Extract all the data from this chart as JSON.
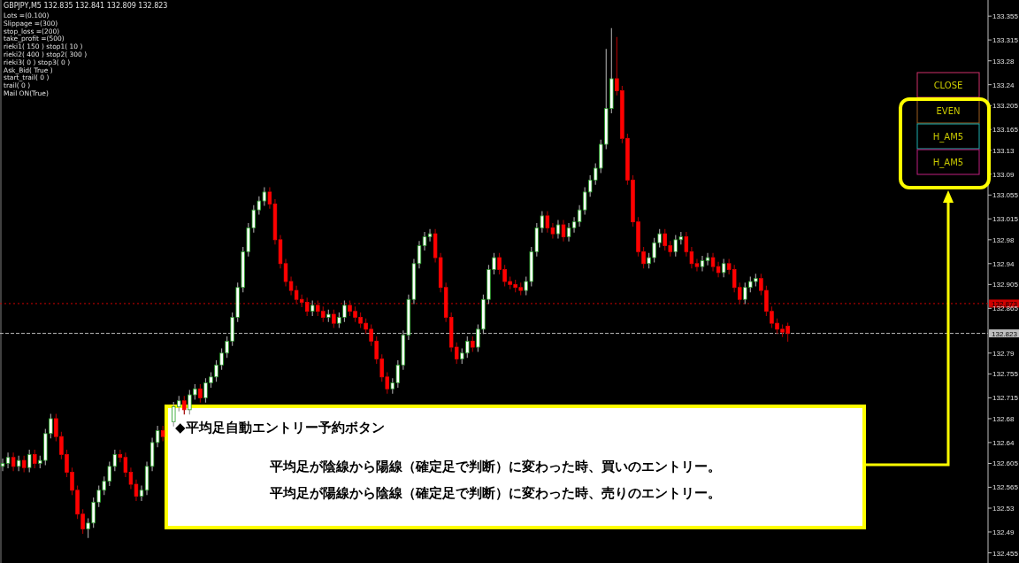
{
  "chart_data": {
    "type": "candlestick",
    "title": "GBPJPY,M5  132.835 132.841 132.809 132.823",
    "annotations": [
      "Lots =(0.100)",
      "Slippage =(300)",
      "stop_loss =(200)",
      "take_profit =(500)",
      "rieki1( 150 ) stop1( 10 )",
      "rieki2( 400 ) stop2( 300 )",
      "rieki3( 0 ) stop3( 0 )",
      "Ask_Bid( True )",
      "start_trail( 0 )",
      "trail( 0 )",
      "Mail ON(True)",
      "CLOSE",
      "EVEN",
      "H_AM5",
      "H_AM5",
      "◆平均足自動エントリー予約ボタン",
      "平均足が陰線から陽線（確定足で判断）に変わった時、買いのエントリー。",
      "平均足が陽線から陰線（確定足で判断）に変わった時、売りのエントリー。"
    ],
    "categories": [
      null,
      null,
      null,
      null,
      null,
      null,
      null,
      null,
      null,
      null,
      null,
      null,
      null,
      null,
      null,
      null,
      null,
      null,
      null,
      null,
      null,
      null,
      null,
      null,
      null,
      null,
      null,
      null,
      null,
      null,
      null,
      null,
      null,
      null,
      null,
      null,
      null,
      null,
      null,
      null,
      null,
      null,
      null,
      null,
      null,
      null,
      null,
      null,
      null,
      null,
      null,
      null,
      null,
      null,
      null,
      null,
      null,
      null,
      null,
      null,
      null,
      null,
      null,
      null,
      null,
      null,
      null,
      null,
      null,
      null,
      null,
      null,
      null,
      null,
      null,
      null,
      null,
      null,
      null,
      null,
      null,
      null,
      null,
      null,
      null,
      null,
      null,
      null,
      null,
      null,
      null,
      null,
      null,
      null,
      null,
      null,
      null,
      null,
      null,
      null,
      null,
      null,
      null,
      null,
      null,
      null,
      null,
      null,
      null,
      null,
      null,
      null,
      null,
      null,
      null,
      null,
      null,
      null,
      null,
      null,
      null,
      null,
      null,
      null,
      null,
      null,
      null,
      null,
      null,
      null,
      null,
      null,
      null,
      null,
      null,
      null,
      null,
      null,
      null,
      null,
      null,
      null,
      null,
      null,
      null,
      null,
      null,
      null,
      null,
      null,
      null,
      null,
      null,
      null,
      null,
      null,
      null,
      null,
      null,
      null,
      null,
      null,
      null,
      null,
      null,
      null,
      null,
      null,
      null,
      null,
      null,
      null,
      null,
      null,
      null,
      null,
      null,
      null,
      null,
      null,
      null,
      null,
      null,
      null,
      null
    ],
    "ohlc": [
      [
        132.6,
        132.613,
        132.592,
        132.605
      ],
      [
        132.605,
        132.623,
        132.597,
        132.615
      ],
      [
        132.615,
        132.623,
        132.592,
        132.6
      ],
      [
        132.6,
        132.618,
        132.592,
        132.61
      ],
      [
        132.61,
        132.618,
        132.59,
        132.598
      ],
      [
        132.598,
        132.628,
        132.59,
        132.62
      ],
      [
        132.62,
        132.628,
        132.597,
        132.605
      ],
      [
        132.605,
        132.618,
        132.597,
        132.61
      ],
      [
        132.61,
        132.663,
        132.602,
        132.655
      ],
      [
        132.655,
        132.688,
        132.647,
        132.68
      ],
      [
        132.68,
        132.688,
        132.642,
        132.65
      ],
      [
        132.65,
        132.658,
        132.612,
        132.62
      ],
      [
        132.62,
        132.628,
        132.582,
        132.59
      ],
      [
        132.59,
        132.598,
        132.552,
        132.56
      ],
      [
        132.56,
        132.568,
        132.512,
        132.52
      ],
      [
        132.52,
        132.528,
        132.487,
        132.495
      ],
      [
        132.495,
        132.513,
        132.48,
        132.505
      ],
      [
        132.505,
        132.548,
        132.497,
        132.54
      ],
      [
        132.54,
        132.568,
        132.532,
        132.56
      ],
      [
        132.56,
        132.583,
        132.552,
        132.575
      ],
      [
        132.575,
        132.608,
        132.567,
        132.6
      ],
      [
        132.6,
        132.628,
        132.592,
        132.62
      ],
      [
        132.62,
        132.628,
        132.607,
        132.615
      ],
      [
        132.615,
        132.623,
        132.582,
        132.59
      ],
      [
        132.59,
        132.598,
        132.562,
        132.57
      ],
      [
        132.57,
        132.578,
        132.542,
        132.55
      ],
      [
        132.55,
        132.568,
        132.542,
        132.56
      ],
      [
        132.56,
        132.608,
        132.552,
        132.6
      ],
      [
        132.6,
        132.648,
        132.592,
        132.64
      ],
      [
        132.64,
        132.668,
        132.632,
        132.66
      ],
      [
        132.66,
        132.668,
        132.642,
        132.65
      ],
      null,
      [
        132.675,
        132.708,
        132.667,
        132.7
      ],
      [
        132.7,
        132.718,
        132.692,
        132.71
      ],
      [
        132.71,
        132.718,
        132.687,
        132.695
      ],
      [
        132.695,
        132.728,
        132.687,
        132.72
      ],
      [
        132.72,
        132.738,
        132.712,
        132.73
      ],
      [
        132.73,
        132.738,
        132.707,
        132.715
      ],
      [
        132.715,
        132.748,
        132.707,
        132.74
      ],
      [
        132.74,
        132.758,
        132.732,
        132.75
      ],
      [
        132.75,
        132.778,
        132.742,
        132.77
      ],
      [
        132.77,
        132.798,
        132.762,
        132.79
      ],
      [
        132.79,
        132.818,
        132.782,
        132.81
      ],
      [
        132.81,
        132.858,
        132.802,
        132.85
      ],
      [
        132.85,
        132.908,
        132.842,
        132.9
      ],
      [
        132.9,
        132.968,
        132.892,
        132.96
      ],
      [
        132.96,
        133.008,
        132.952,
        133.0
      ],
      [
        133.0,
        133.038,
        132.992,
        133.03
      ],
      [
        133.03,
        133.053,
        133.022,
        133.045
      ],
      [
        133.045,
        133.068,
        133.037,
        133.06
      ],
      [
        133.06,
        133.068,
        133.032,
        133.04
      ],
      [
        133.04,
        133.048,
        132.972,
        132.98
      ],
      [
        132.98,
        132.988,
        132.932,
        132.94
      ],
      [
        132.94,
        132.948,
        132.902,
        132.91
      ],
      [
        132.91,
        132.918,
        132.887,
        132.895
      ],
      [
        132.895,
        132.903,
        132.872,
        132.88
      ],
      [
        132.88,
        132.888,
        132.867,
        132.875
      ],
      [
        132.875,
        132.883,
        132.852,
        132.86
      ],
      [
        132.86,
        132.878,
        132.852,
        132.87
      ],
      [
        132.87,
        132.878,
        132.852,
        132.86
      ],
      [
        132.86,
        132.868,
        132.842,
        132.85
      ],
      [
        132.85,
        132.863,
        132.842,
        132.855
      ],
      [
        132.855,
        132.863,
        132.832,
        132.84
      ],
      [
        132.84,
        132.858,
        132.832,
        132.85
      ],
      [
        132.85,
        132.878,
        132.842,
        132.87
      ],
      [
        132.87,
        132.878,
        132.852,
        132.86
      ],
      [
        132.86,
        132.868,
        132.842,
        132.85
      ],
      [
        132.85,
        132.858,
        132.832,
        132.84
      ],
      [
        132.84,
        132.848,
        132.822,
        132.83
      ],
      [
        132.83,
        132.838,
        132.802,
        132.81
      ],
      [
        132.81,
        132.818,
        132.772,
        132.78
      ],
      [
        132.78,
        132.788,
        132.742,
        132.75
      ],
      [
        132.75,
        132.758,
        132.722,
        132.73
      ],
      [
        132.73,
        132.748,
        132.722,
        132.74
      ],
      [
        132.74,
        132.778,
        132.732,
        132.77
      ],
      [
        132.77,
        132.828,
        132.762,
        132.82
      ],
      [
        132.82,
        132.888,
        132.812,
        132.88
      ],
      [
        132.88,
        132.948,
        132.872,
        132.94
      ],
      [
        132.94,
        132.978,
        132.932,
        132.97
      ],
      [
        132.97,
        132.993,
        132.962,
        132.985
      ],
      [
        132.985,
        132.998,
        132.977,
        132.99
      ],
      [
        132.99,
        132.998,
        132.942,
        132.95
      ],
      [
        132.95,
        132.958,
        132.892,
        132.9
      ],
      [
        132.9,
        132.908,
        132.842,
        132.85
      ],
      [
        132.85,
        132.858,
        132.792,
        132.8
      ],
      [
        132.8,
        132.808,
        132.772,
        132.78
      ],
      [
        132.78,
        132.798,
        132.772,
        132.79
      ],
      [
        132.79,
        132.818,
        132.782,
        132.81
      ],
      [
        132.81,
        132.818,
        132.792,
        132.8
      ],
      [
        132.8,
        132.838,
        132.792,
        132.83
      ],
      [
        132.83,
        132.888,
        132.822,
        132.88
      ],
      [
        132.88,
        132.938,
        132.872,
        132.93
      ],
      [
        132.93,
        132.958,
        132.922,
        132.95
      ],
      [
        132.95,
        132.958,
        132.922,
        132.93
      ],
      [
        132.93,
        132.938,
        132.902,
        132.91
      ],
      [
        132.91,
        132.918,
        132.897,
        132.905
      ],
      [
        132.905,
        132.913,
        132.892,
        132.9
      ],
      [
        132.9,
        132.908,
        132.887,
        132.895
      ],
      [
        132.895,
        132.918,
        132.887,
        132.91
      ],
      [
        132.91,
        132.968,
        132.902,
        132.96
      ],
      [
        132.96,
        133.008,
        132.952,
        133.0
      ],
      [
        133.0,
        133.028,
        132.992,
        133.02
      ],
      [
        133.02,
        133.028,
        132.992,
        133.0
      ],
      [
        133.0,
        133.008,
        132.982,
        132.99
      ],
      [
        132.99,
        133.013,
        132.982,
        133.005
      ],
      [
        133.005,
        133.013,
        132.977,
        132.985
      ],
      [
        132.985,
        133.008,
        132.977,
        133.0
      ],
      [
        133.0,
        133.018,
        132.992,
        133.01
      ],
      [
        133.01,
        133.038,
        133.002,
        133.03
      ],
      [
        133.03,
        133.068,
        133.022,
        133.06
      ],
      [
        133.06,
        133.088,
        133.052,
        133.08
      ],
      [
        133.08,
        133.108,
        133.072,
        133.1
      ],
      [
        133.1,
        133.148,
        133.092,
        133.14
      ],
      [
        133.14,
        133.3,
        133.132,
        133.2
      ],
      [
        133.2,
        133.335,
        133.192,
        133.25
      ],
      [
        133.25,
        133.32,
        133.222,
        133.23
      ],
      [
        133.23,
        133.238,
        133.142,
        133.15
      ],
      [
        133.15,
        133.158,
        133.072,
        133.08
      ],
      [
        133.08,
        133.088,
        133.002,
        133.01
      ],
      [
        133.01,
        133.018,
        132.952,
        132.96
      ],
      [
        132.96,
        132.968,
        132.932,
        132.94
      ],
      [
        132.94,
        132.958,
        132.932,
        132.95
      ],
      [
        132.95,
        132.983,
        132.942,
        132.975
      ],
      [
        132.975,
        132.998,
        132.967,
        132.99
      ],
      [
        132.99,
        132.998,
        132.962,
        132.97
      ],
      [
        132.97,
        132.978,
        132.952,
        132.96
      ],
      [
        132.96,
        132.988,
        132.952,
        132.98
      ],
      [
        132.98,
        132.993,
        132.972,
        132.985
      ],
      [
        132.985,
        132.993,
        132.952,
        132.96
      ],
      [
        132.96,
        132.968,
        132.932,
        132.94
      ],
      [
        132.94,
        132.948,
        132.927,
        132.935
      ],
      [
        132.935,
        132.953,
        132.927,
        132.945
      ],
      [
        132.945,
        132.958,
        132.937,
        132.95
      ],
      [
        132.95,
        132.958,
        132.927,
        132.935
      ],
      [
        132.935,
        132.943,
        132.917,
        132.925
      ],
      [
        132.925,
        132.948,
        132.917,
        132.94
      ],
      [
        132.94,
        132.948,
        132.922,
        132.93
      ],
      [
        132.93,
        132.938,
        132.892,
        132.9
      ],
      [
        132.9,
        132.908,
        132.872,
        132.88
      ],
      [
        132.88,
        132.908,
        132.872,
        132.9
      ],
      [
        132.9,
        132.918,
        132.892,
        132.91
      ],
      [
        132.91,
        132.923,
        132.902,
        132.915
      ],
      [
        132.915,
        132.923,
        132.887,
        132.895
      ],
      [
        132.895,
        132.903,
        132.852,
        132.86
      ],
      [
        132.86,
        132.868,
        132.832,
        132.84
      ],
      [
        132.84,
        132.848,
        132.822,
        132.83
      ],
      [
        132.83,
        132.838,
        132.817,
        132.825
      ],
      [
        132.835,
        132.841,
        132.809,
        132.823
      ],
      null,
      null,
      null,
      null,
      null,
      null,
      null,
      null,
      null,
      null,
      null,
      null,
      null,
      null,
      null,
      null,
      null,
      null,
      null,
      null,
      null,
      null,
      null,
      null,
      null,
      null,
      null,
      null,
      null,
      null,
      null,
      null,
      null,
      null,
      null,
      null,
      null
    ],
    "ylim": [
      132.438,
      133.382
    ],
    "yticks": [
      133.355,
      133.315,
      133.28,
      133.24,
      133.205,
      133.165,
      133.13,
      133.09,
      133.055,
      133.015,
      132.98,
      132.94,
      132.905,
      132.865,
      132.79,
      132.755,
      132.715,
      132.68,
      132.64,
      132.605,
      132.565,
      132.53,
      132.49,
      132.455
    ],
    "ref_lines": [
      {
        "axis": "y",
        "value": 132.873,
        "label": "132.873",
        "color": "#d00000",
        "line_style": "dotted"
      },
      {
        "axis": "y",
        "value": 132.823,
        "label": "132.823",
        "color": "#c0c0c0",
        "line_style": "dashed"
      }
    ],
    "grid": false
  }
}
